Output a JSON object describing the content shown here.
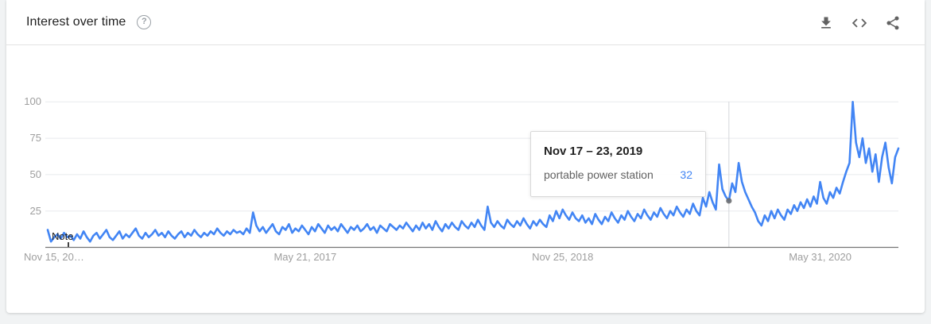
{
  "header": {
    "title": "Interest over time",
    "help_icon": "question-mark-circle-icon"
  },
  "toolbar": {
    "download_label": "Download CSV",
    "embed_label": "Embed",
    "share_label": "Share"
  },
  "tooltip": {
    "date": "Nov 17 – 23, 2019",
    "term": "portable power station",
    "value": "32",
    "week_index": 209,
    "value_color": "#4285f4"
  },
  "note": {
    "label": "Note"
  },
  "chart_data": {
    "type": "line",
    "title": "Interest over time",
    "series_name": "portable power station",
    "x_start_label_truncated": "Nov 15, 20…",
    "x_ticks": [
      {
        "label": "Nov 15, 20…",
        "week": 0,
        "align": "left"
      },
      {
        "label": "May 21, 2017",
        "week": 79,
        "align": "center"
      },
      {
        "label": "Nov 25, 2018",
        "week": 158,
        "align": "center"
      },
      {
        "label": "May 31, 2020",
        "week": 237,
        "align": "center"
      }
    ],
    "y_ticks": [
      100,
      75,
      50,
      25
    ],
    "ylim": [
      0,
      100
    ],
    "grid": "horizontal",
    "legend_position": "none",
    "line_color": "#4285f4",
    "crosshair_color": "#d5d7da",
    "values": [
      12,
      4,
      7,
      9,
      6,
      10,
      7,
      8,
      5,
      9,
      6,
      11,
      7,
      4,
      8,
      10,
      6,
      9,
      12,
      7,
      5,
      8,
      11,
      6,
      9,
      7,
      10,
      13,
      8,
      6,
      10,
      7,
      9,
      12,
      8,
      10,
      7,
      11,
      8,
      6,
      9,
      11,
      7,
      10,
      8,
      12,
      9,
      7,
      10,
      8,
      11,
      9,
      13,
      10,
      8,
      11,
      9,
      12,
      10,
      11,
      9,
      13,
      10,
      24,
      15,
      11,
      14,
      10,
      13,
      16,
      11,
      9,
      14,
      12,
      16,
      10,
      13,
      11,
      15,
      12,
      9,
      14,
      11,
      16,
      13,
      10,
      15,
      12,
      14,
      11,
      16,
      13,
      10,
      14,
      12,
      15,
      11,
      13,
      16,
      12,
      14,
      10,
      15,
      13,
      11,
      16,
      14,
      12,
      15,
      13,
      17,
      14,
      11,
      15,
      12,
      17,
      13,
      16,
      12,
      18,
      14,
      11,
      16,
      13,
      17,
      14,
      12,
      18,
      15,
      13,
      17,
      14,
      19,
      15,
      12,
      28,
      17,
      14,
      18,
      15,
      13,
      19,
      16,
      14,
      18,
      15,
      20,
      16,
      13,
      18,
      15,
      19,
      16,
      14,
      22,
      18,
      25,
      20,
      26,
      22,
      19,
      24,
      20,
      18,
      22,
      17,
      20,
      16,
      23,
      19,
      16,
      21,
      18,
      24,
      20,
      17,
      22,
      19,
      25,
      21,
      18,
      23,
      20,
      26,
      22,
      19,
      24,
      21,
      27,
      23,
      20,
      25,
      22,
      28,
      24,
      21,
      26,
      23,
      30,
      25,
      22,
      34,
      28,
      38,
      31,
      26,
      57,
      40,
      35,
      32,
      44,
      38,
      58,
      45,
      38,
      33,
      28,
      24,
      18,
      15,
      22,
      18,
      25,
      20,
      26,
      22,
      19,
      26,
      23,
      29,
      25,
      31,
      27,
      33,
      28,
      35,
      30,
      45,
      34,
      30,
      38,
      34,
      41,
      37,
      45,
      52,
      58,
      100,
      72,
      62,
      75,
      58,
      68,
      52,
      64,
      45,
      62,
      72,
      55,
      44,
      62,
      68
    ]
  }
}
